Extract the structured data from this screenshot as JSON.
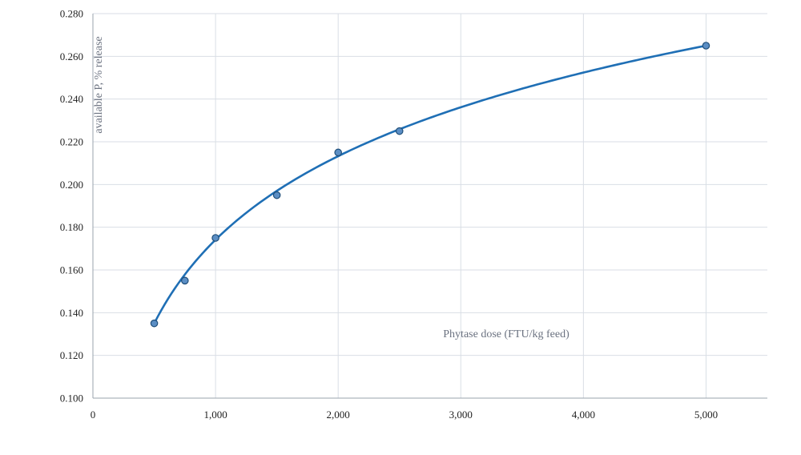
{
  "chart_data": {
    "type": "scatter",
    "title": "",
    "xlabel": "Phytase dose (FTU/kg feed)",
    "ylabel": "available P, % release",
    "xlim": [
      0,
      5500
    ],
    "ylim": [
      0.1,
      0.28
    ],
    "x_ticks": [
      0,
      1000,
      2000,
      3000,
      4000,
      5000
    ],
    "x_tick_labels": [
      "0",
      "1,000",
      "2,000",
      "3,000",
      "4,000",
      "5,000"
    ],
    "y_ticks": [
      0.1,
      0.12,
      0.14,
      0.16,
      0.18,
      0.2,
      0.22,
      0.24,
      0.26,
      0.28
    ],
    "y_tick_labels": [
      "0.100",
      "0.120",
      "0.140",
      "0.160",
      "0.180",
      "0.200",
      "0.220",
      "0.240",
      "0.260",
      "0.280"
    ],
    "grid": true,
    "series": [
      {
        "x": [
          500,
          750,
          1000,
          1500,
          2000,
          2500,
          5000
        ],
        "y": [
          0.135,
          0.155,
          0.175,
          0.195,
          0.215,
          0.225,
          0.265
        ],
        "color": "#5b8ec4",
        "edge_color": "#1f4e79"
      }
    ],
    "trendline": {
      "type": "logarithmic",
      "x_from": 500,
      "x_to": 5000,
      "y_from": 0.135,
      "y_to": 0.265,
      "color": "#1f6fb5"
    },
    "colors": {
      "grid": "#d9dee5",
      "axis": "#9aa3ad",
      "tick_text": "#222222",
      "label_text": "#6b7280"
    }
  }
}
